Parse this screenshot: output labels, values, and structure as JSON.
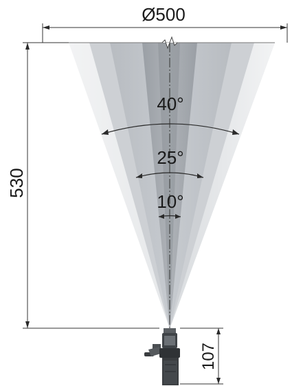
{
  "dimensions": {
    "diameter_label": "Ø500",
    "height_label": "530",
    "nozzle_height_label": "107"
  },
  "angles": [
    {
      "label": "40°",
      "value": 40
    },
    {
      "label": "25°",
      "value": 25
    },
    {
      "label": "10°",
      "value": 10
    }
  ],
  "colors": {
    "cone_outer": "#e6e8ea",
    "cone_40": "#c9cdd1",
    "cone_25": "#a7acb2",
    "cone_10": "#8c9197",
    "line": "#333333",
    "nozzle": "#3a3d40"
  }
}
